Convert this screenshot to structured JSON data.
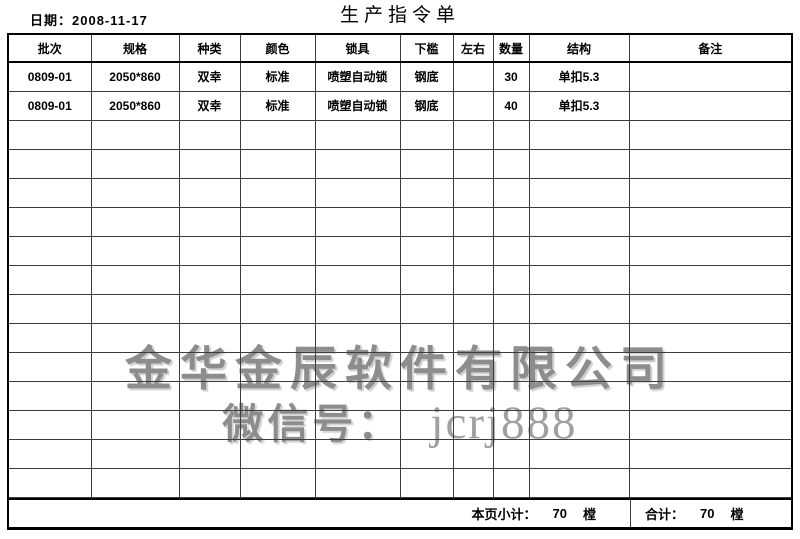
{
  "page": {
    "title": "生产指令单",
    "date_label": "日期：",
    "date_value": "2008-11-17"
  },
  "table": {
    "columns": [
      "批次",
      "规格",
      "种类",
      "颜色",
      "锁具",
      "下槛",
      "左右",
      "数量",
      "结构",
      "备注"
    ],
    "rows": [
      [
        "0809-01",
        "2050*860",
        "双幸",
        "标准",
        "喷塑自动锁",
        "钢底",
        "",
        "30",
        "单扣5.3",
        ""
      ],
      [
        "0809-01",
        "2050*860",
        "双幸",
        "标准",
        "喷塑自动锁",
        "钢底",
        "",
        "40",
        "单扣5.3",
        ""
      ],
      [
        "",
        "",
        "",
        "",
        "",
        "",
        "",
        "",
        "",
        ""
      ],
      [
        "",
        "",
        "",
        "",
        "",
        "",
        "",
        "",
        "",
        ""
      ],
      [
        "",
        "",
        "",
        "",
        "",
        "",
        "",
        "",
        "",
        ""
      ],
      [
        "",
        "",
        "",
        "",
        "",
        "",
        "",
        "",
        "",
        ""
      ],
      [
        "",
        "",
        "",
        "",
        "",
        "",
        "",
        "",
        "",
        ""
      ],
      [
        "",
        "",
        "",
        "",
        "",
        "",
        "",
        "",
        "",
        ""
      ],
      [
        "",
        "",
        "",
        "",
        "",
        "",
        "",
        "",
        "",
        ""
      ],
      [
        "",
        "",
        "",
        "",
        "",
        "",
        "",
        "",
        "",
        ""
      ],
      [
        "",
        "",
        "",
        "",
        "",
        "",
        "",
        "",
        "",
        ""
      ],
      [
        "",
        "",
        "",
        "",
        "",
        "",
        "",
        "",
        "",
        ""
      ],
      [
        "",
        "",
        "",
        "",
        "",
        "",
        "",
        "",
        "",
        ""
      ],
      [
        "",
        "",
        "",
        "",
        "",
        "",
        "",
        "",
        "",
        ""
      ],
      [
        "",
        "",
        "",
        "",
        "",
        "",
        "",
        "",
        "",
        ""
      ]
    ],
    "summary": {
      "page_subtotal_label": "本页小计：",
      "page_subtotal_value": "70",
      "page_subtotal_unit": "樘",
      "total_label": "合计：",
      "total_value": "70",
      "total_unit": "樘"
    }
  },
  "watermark": {
    "line1": "金华金辰软件有限公司",
    "line2_label": "微信号：",
    "line2_code": "jcrj888"
  },
  "colors": {
    "text": "#000000",
    "grid": "#3c3c3c",
    "border": "#000000",
    "watermark": "#8d8d8d"
  }
}
